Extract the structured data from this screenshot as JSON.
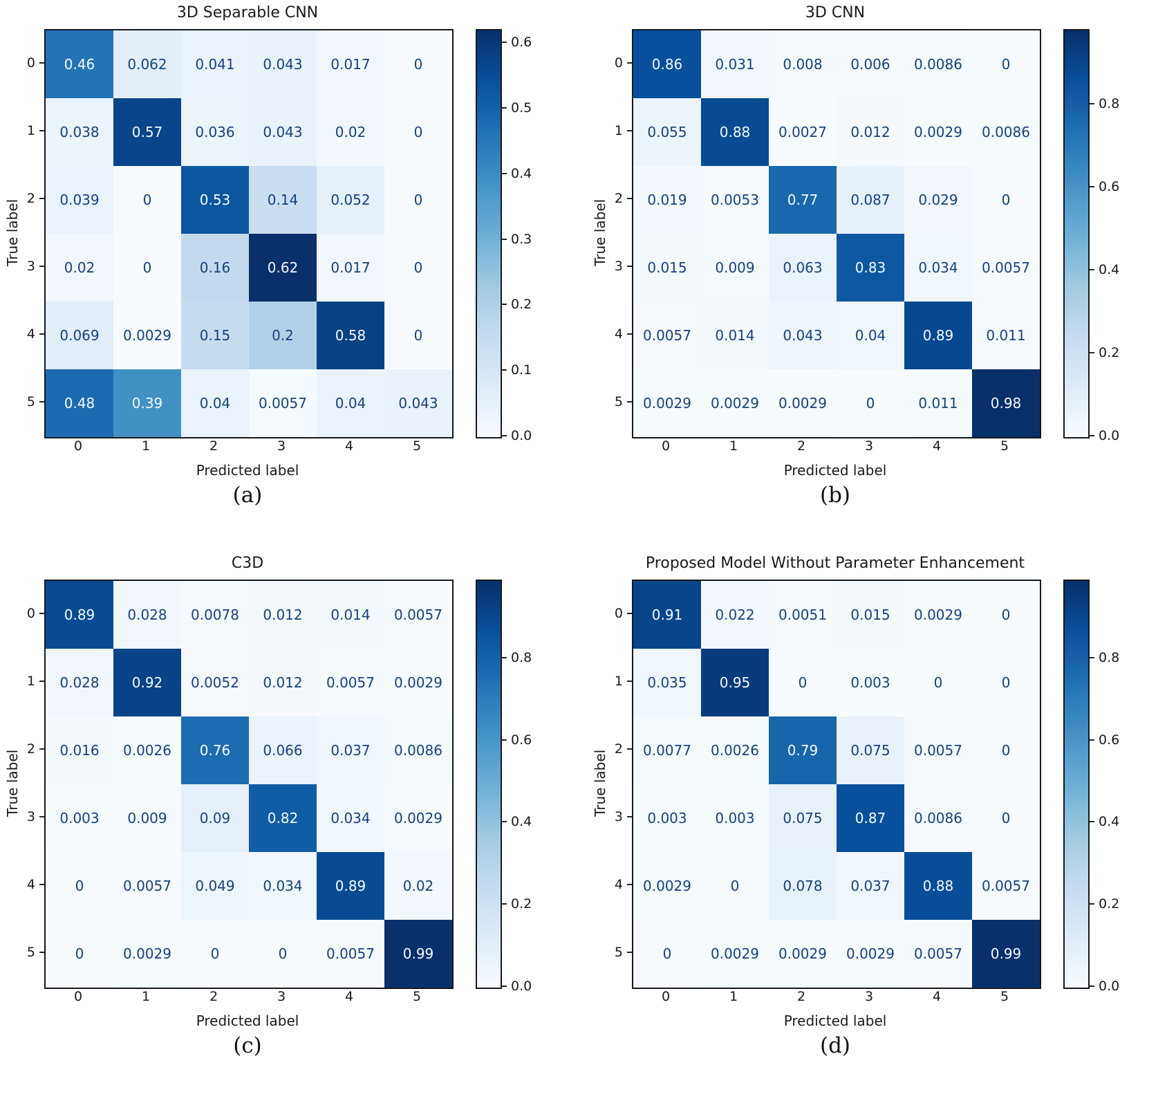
{
  "colors": {
    "colormap": "Blues",
    "text_dark": "#15417f",
    "text_light": "#f7fbff",
    "axis": "#1a1a1a",
    "heat_min": "#f7fbff",
    "heat_max": "#08306b"
  },
  "chart_data": [
    {
      "type": "heatmap",
      "title": "3D Separable CNN",
      "caption": "(a)",
      "xlabel": "Predicted label",
      "ylabel": "True label",
      "x_ticklabels": [
        "0",
        "1",
        "2",
        "3",
        "4",
        "5"
      ],
      "y_ticklabels": [
        "0",
        "1",
        "2",
        "3",
        "4",
        "5"
      ],
      "values": [
        [
          0.46,
          0.062,
          0.041,
          0.043,
          0.017,
          0
        ],
        [
          0.038,
          0.57,
          0.036,
          0.043,
          0.02,
          0
        ],
        [
          0.039,
          0,
          0.53,
          0.14,
          0.052,
          0
        ],
        [
          0.02,
          0,
          0.16,
          0.62,
          0.017,
          0
        ],
        [
          0.069,
          0.0029,
          0.15,
          0.2,
          0.58,
          0
        ],
        [
          0.48,
          0.39,
          0.04,
          0.0057,
          0.04,
          0.043
        ]
      ],
      "display": [
        [
          "0.46",
          "0.062",
          "0.041",
          "0.043",
          "0.017",
          "0"
        ],
        [
          "0.038",
          "0.57",
          "0.036",
          "0.043",
          "0.02",
          "0"
        ],
        [
          "0.039",
          "0",
          "0.53",
          "0.14",
          "0.052",
          "0"
        ],
        [
          "0.02",
          "0",
          "0.16",
          "0.62",
          "0.017",
          "0"
        ],
        [
          "0.069",
          "0.0029",
          "0.15",
          "0.2",
          "0.58",
          "0"
        ],
        [
          "0.48",
          "0.39",
          "0.04",
          "0.0057",
          "0.04",
          "0.043"
        ]
      ],
      "vmin": 0.0,
      "vmax": 0.62,
      "colorbar_ticks": [
        0.0,
        0.1,
        0.2,
        0.3,
        0.4,
        0.5,
        0.6
      ]
    },
    {
      "type": "heatmap",
      "title": "3D CNN",
      "caption": "(b)",
      "xlabel": "Predicted label",
      "ylabel": "True label",
      "x_ticklabels": [
        "0",
        "1",
        "2",
        "3",
        "4",
        "5"
      ],
      "y_ticklabels": [
        "0",
        "1",
        "2",
        "3",
        "4",
        "5"
      ],
      "values": [
        [
          0.86,
          0.031,
          0.008,
          0.006,
          0.0086,
          0
        ],
        [
          0.055,
          0.88,
          0.0027,
          0.012,
          0.0029,
          0.0086
        ],
        [
          0.019,
          0.0053,
          0.77,
          0.087,
          0.029,
          0
        ],
        [
          0.015,
          0.009,
          0.063,
          0.83,
          0.034,
          0.0057
        ],
        [
          0.0057,
          0.014,
          0.043,
          0.04,
          0.89,
          0.011
        ],
        [
          0.0029,
          0.0029,
          0.0029,
          0,
          0.011,
          0.98
        ]
      ],
      "display": [
        [
          "0.86",
          "0.031",
          "0.008",
          "0.006",
          "0.0086",
          "0"
        ],
        [
          "0.055",
          "0.88",
          "0.0027",
          "0.012",
          "0.0029",
          "0.0086"
        ],
        [
          "0.019",
          "0.0053",
          "0.77",
          "0.087",
          "0.029",
          "0"
        ],
        [
          "0.015",
          "0.009",
          "0.063",
          "0.83",
          "0.034",
          "0.0057"
        ],
        [
          "0.0057",
          "0.014",
          "0.043",
          "0.04",
          "0.89",
          "0.011"
        ],
        [
          "0.0029",
          "0.0029",
          "0.0029",
          "0",
          "0.011",
          "0.98"
        ]
      ],
      "vmin": 0.0,
      "vmax": 0.98,
      "colorbar_ticks": [
        0.0,
        0.2,
        0.4,
        0.6,
        0.8
      ]
    },
    {
      "type": "heatmap",
      "title": "C3D",
      "caption": "(c)",
      "xlabel": "Predicted label",
      "ylabel": "True label",
      "x_ticklabels": [
        "0",
        "1",
        "2",
        "3",
        "4",
        "5"
      ],
      "y_ticklabels": [
        "0",
        "1",
        "2",
        "3",
        "4",
        "5"
      ],
      "values": [
        [
          0.89,
          0.028,
          0.0078,
          0.012,
          0.014,
          0.0057
        ],
        [
          0.028,
          0.92,
          0.0052,
          0.012,
          0.0057,
          0.0029
        ],
        [
          0.016,
          0.0026,
          0.76,
          0.066,
          0.037,
          0.0086
        ],
        [
          0.003,
          0.009,
          0.09,
          0.82,
          0.034,
          0.0029
        ],
        [
          0,
          0.0057,
          0.049,
          0.034,
          0.89,
          0.02
        ],
        [
          0,
          0.0029,
          0,
          0,
          0.0057,
          0.99
        ]
      ],
      "display": [
        [
          "0.89",
          "0.028",
          "0.0078",
          "0.012",
          "0.014",
          "0.0057"
        ],
        [
          "0.028",
          "0.92",
          "0.0052",
          "0.012",
          "0.0057",
          "0.0029"
        ],
        [
          "0.016",
          "0.0026",
          "0.76",
          "0.066",
          "0.037",
          "0.0086"
        ],
        [
          "0.003",
          "0.009",
          "0.09",
          "0.82",
          "0.034",
          "0.0029"
        ],
        [
          "0",
          "0.0057",
          "0.049",
          "0.034",
          "0.89",
          "0.02"
        ],
        [
          "0",
          "0.0029",
          "0",
          "0",
          "0.0057",
          "0.99"
        ]
      ],
      "vmin": 0.0,
      "vmax": 0.99,
      "colorbar_ticks": [
        0.0,
        0.2,
        0.4,
        0.6,
        0.8
      ]
    },
    {
      "type": "heatmap",
      "title": "Proposed Model Without Parameter Enhancement",
      "caption": "(d)",
      "xlabel": "Predicted label",
      "ylabel": "True label",
      "x_ticklabels": [
        "0",
        "1",
        "2",
        "3",
        "4",
        "5"
      ],
      "y_ticklabels": [
        "0",
        "1",
        "2",
        "3",
        "4",
        "5"
      ],
      "values": [
        [
          0.91,
          0.022,
          0.0051,
          0.015,
          0.0029,
          0
        ],
        [
          0.035,
          0.95,
          0,
          0.003,
          0,
          0
        ],
        [
          0.0077,
          0.0026,
          0.79,
          0.075,
          0.0057,
          0
        ],
        [
          0.003,
          0.003,
          0.075,
          0.87,
          0.0086,
          0
        ],
        [
          0.0029,
          0,
          0.078,
          0.037,
          0.88,
          0.0057
        ],
        [
          0,
          0.0029,
          0.0029,
          0.0029,
          0.0057,
          0.99
        ]
      ],
      "display": [
        [
          "0.91",
          "0.022",
          "0.0051",
          "0.015",
          "0.0029",
          "0"
        ],
        [
          "0.035",
          "0.95",
          "0",
          "0.003",
          "0",
          "0"
        ],
        [
          "0.0077",
          "0.0026",
          "0.79",
          "0.075",
          "0.0057",
          "0"
        ],
        [
          "0.003",
          "0.003",
          "0.075",
          "0.87",
          "0.0086",
          "0"
        ],
        [
          "0.0029",
          "0",
          "0.078",
          "0.037",
          "0.88",
          "0.0057"
        ],
        [
          "0",
          "0.0029",
          "0.0029",
          "0.0029",
          "0.0057",
          "0.99"
        ]
      ],
      "vmin": 0.0,
      "vmax": 0.99,
      "colorbar_ticks": [
        0.0,
        0.2,
        0.4,
        0.6,
        0.8
      ]
    }
  ]
}
